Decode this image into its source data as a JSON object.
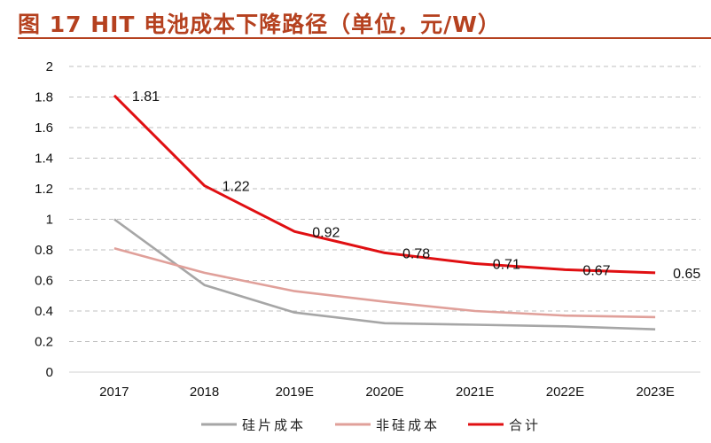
{
  "title": "图 17 HIT 电池成本下降路径（单位，元/W）",
  "colors": {
    "title": "#b5411f",
    "grid": "#bfbfbf"
  },
  "chart_data": {
    "type": "line",
    "categories": [
      "2017",
      "2018",
      "2019E",
      "2020E",
      "2021E",
      "2022E",
      "2023E"
    ],
    "ylim": [
      0,
      2
    ],
    "yticks": [
      "0",
      "0.2",
      "0.4",
      "0.6",
      "0.8",
      "1",
      "1.2",
      "1.4",
      "1.6",
      "1.8",
      "2"
    ],
    "grid": "horizontal dashed",
    "legend": "bottom",
    "series": [
      {
        "name": "硅片成本",
        "color": "#a6a6a6",
        "values": [
          1.0,
          0.57,
          0.39,
          0.32,
          0.31,
          0.3,
          0.28
        ]
      },
      {
        "name": "非硅成本",
        "color": "#e0a09a",
        "values": [
          0.81,
          0.65,
          0.53,
          0.46,
          0.4,
          0.37,
          0.36
        ]
      },
      {
        "name": "合计",
        "color": "#e00f12",
        "values": [
          1.81,
          1.22,
          0.92,
          0.78,
          0.71,
          0.67,
          0.65
        ],
        "labels": [
          "1.81",
          "1.22",
          "0.92",
          "0.78",
          "0.71",
          "0.67",
          "0.65"
        ]
      }
    ]
  }
}
